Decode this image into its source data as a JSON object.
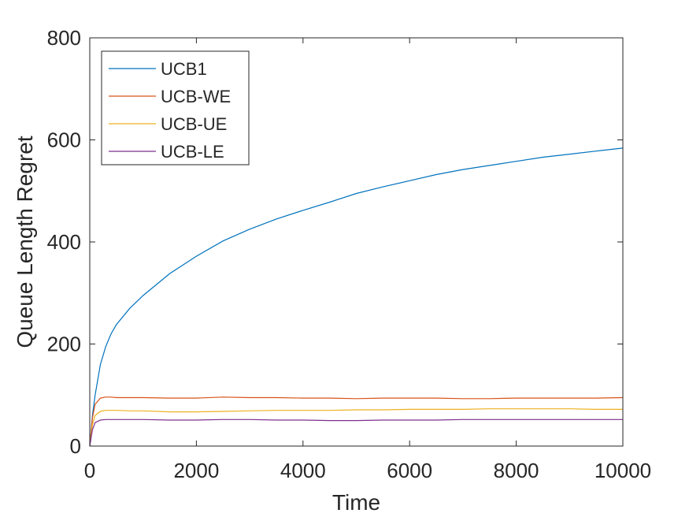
{
  "chart_data": {
    "type": "line",
    "title": "",
    "xlabel": "Time",
    "ylabel": "Queue Length Regret",
    "xlim": [
      0,
      10000
    ],
    "ylim": [
      0,
      800
    ],
    "xticks": [
      0,
      2000,
      4000,
      6000,
      8000,
      10000
    ],
    "yticks": [
      0,
      200,
      400,
      600,
      800
    ],
    "xtick_labels": [
      "0",
      "2000",
      "4000",
      "6000",
      "8000",
      "10000"
    ],
    "ytick_labels": [
      "0",
      "200",
      "400",
      "600",
      "800"
    ],
    "grid": false,
    "legend_position": "top-left",
    "x": [
      0,
      50,
      100,
      200,
      300,
      400,
      500,
      750,
      1000,
      1500,
      2000,
      2500,
      3000,
      3500,
      4000,
      4500,
      5000,
      5500,
      6000,
      6500,
      7000,
      7500,
      8000,
      8500,
      9000,
      9500,
      10000
    ],
    "series": [
      {
        "name": "UCB1",
        "color": "#0072BD",
        "values": [
          0,
          60,
          100,
          160,
          195,
          220,
          238,
          270,
          295,
          338,
          372,
          402,
          425,
          445,
          462,
          478,
          495,
          508,
          520,
          532,
          542,
          550,
          558,
          566,
          572,
          578,
          584
        ]
      },
      {
        "name": "UCB-WE",
        "color": "#D95319",
        "values": [
          0,
          55,
          82,
          94,
          96,
          96,
          95,
          95,
          95,
          94,
          94,
          96,
          95,
          95,
          94,
          94,
          93,
          94,
          94,
          94,
          93,
          93,
          94,
          94,
          94,
          94,
          95
        ]
      },
      {
        "name": "UCB-UE",
        "color": "#EDB120",
        "values": [
          0,
          42,
          60,
          68,
          70,
          70,
          70,
          69,
          69,
          67,
          67,
          68,
          69,
          70,
          70,
          70,
          71,
          71,
          72,
          72,
          72,
          73,
          73,
          73,
          73,
          72,
          72
        ]
      },
      {
        "name": "UCB-LE",
        "color": "#7E2F8E",
        "values": [
          0,
          32,
          46,
          51,
          52,
          52,
          52,
          52,
          52,
          51,
          51,
          52,
          52,
          51,
          51,
          50,
          50,
          51,
          51,
          51,
          52,
          52,
          52,
          52,
          52,
          52,
          52
        ]
      }
    ]
  }
}
